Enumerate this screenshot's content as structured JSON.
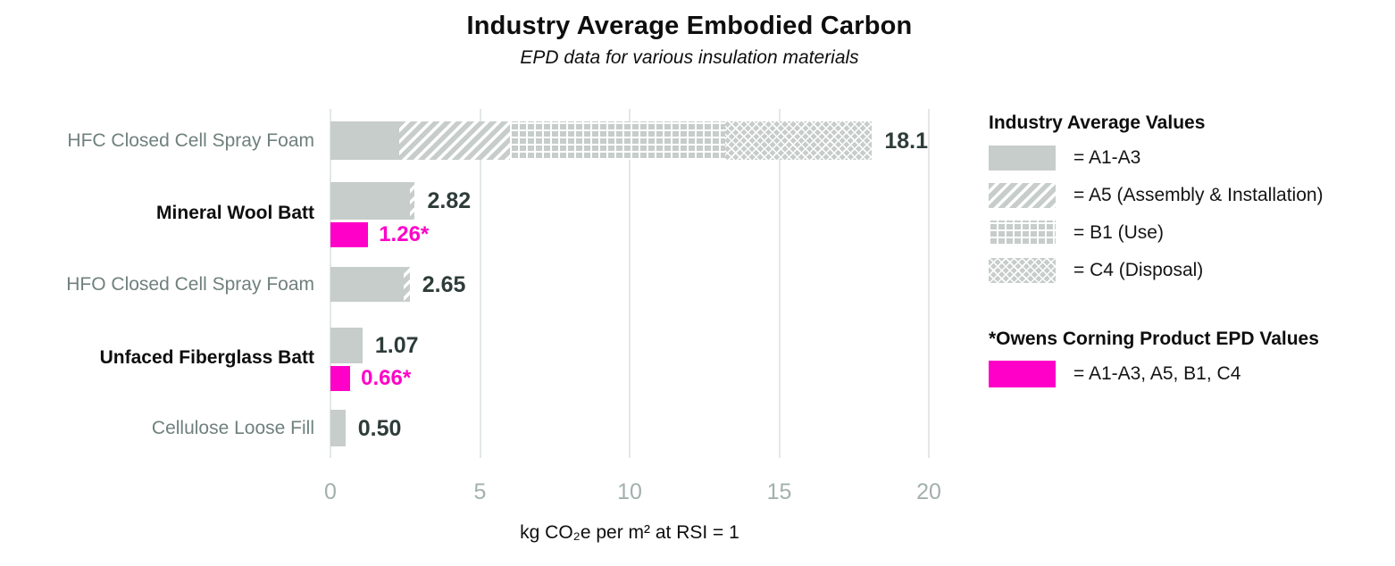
{
  "title": "Industry Average Embodied Carbon",
  "subtitle": "EPD data for various insulation materials",
  "colors": {
    "bar_gray": "#c6cdca",
    "magenta": "#ff00c8",
    "value_dark": "#2e3c3a",
    "cat_gray": "#6f807d",
    "tick_gray": "#a2b0ae",
    "gridline": "#e3e8e6",
    "ink": "#0e0e0e"
  },
  "chart_data": {
    "type": "bar",
    "orientation": "horizontal",
    "title": "Industry Average Embodied Carbon",
    "subtitle": "EPD data for various insulation materials",
    "xlabel": "kg CO₂e per m² at RSI = 1",
    "xlim": [
      0,
      20
    ],
    "xticks": [
      "0",
      "5",
      "10",
      "15",
      "20"
    ],
    "xtick_values": [
      0,
      5,
      10,
      15,
      20
    ],
    "grid": true,
    "stage_patterns": {
      "A1-A3": "solid",
      "A5": "diagonal",
      "B1": "grid",
      "C4": "weave"
    },
    "bars": [
      {
        "category": "HFC Closed Cell Spray Foam",
        "emphasis": false,
        "industry": {
          "total": 18.1,
          "total_label": "18.1",
          "segments": [
            {
              "stage": "A1-A3",
              "value": 2.3
            },
            {
              "stage": "A5",
              "value": 3.7
            },
            {
              "stage": "B1",
              "value": 7.2
            },
            {
              "stage": "C4",
              "value": 4.9
            }
          ]
        },
        "owens_corning": null
      },
      {
        "category": "Mineral Wool Batt",
        "emphasis": true,
        "industry": {
          "total": 2.82,
          "total_label": "2.82",
          "segments": [
            {
              "stage": "A1-A3",
              "value": 2.67
            },
            {
              "stage": "A5",
              "value": 0.15
            }
          ]
        },
        "owens_corning": {
          "value": 1.26,
          "label": "1.26*"
        }
      },
      {
        "category": "HFO Closed Cell Spray Foam",
        "emphasis": false,
        "industry": {
          "total": 2.65,
          "total_label": "2.65",
          "segments": [
            {
              "stage": "A1-A3",
              "value": 2.45
            },
            {
              "stage": "A5",
              "value": 0.2
            }
          ]
        },
        "owens_corning": null
      },
      {
        "category": "Unfaced Fiberglass Batt",
        "emphasis": true,
        "industry": {
          "total": 1.07,
          "total_label": "1.07",
          "segments": [
            {
              "stage": "A1-A3",
              "value": 1.07
            }
          ]
        },
        "owens_corning": {
          "value": 0.66,
          "label": "0.66*"
        }
      },
      {
        "category": "Cellulose Loose Fill",
        "emphasis": false,
        "industry": {
          "total": 0.5,
          "total_label": "0.50",
          "segments": [
            {
              "stage": "A1-A3",
              "value": 0.5
            }
          ]
        },
        "owens_corning": null
      }
    ]
  },
  "legend": {
    "industry_title": "Industry Average Values",
    "industry_items": [
      {
        "pattern": "solid",
        "label": "= A1-A3"
      },
      {
        "pattern": "diagonal",
        "label": "= A5 (Assembly & Installation)"
      },
      {
        "pattern": "grid",
        "label": "= B1 (Use)"
      },
      {
        "pattern": "weave",
        "label": "= C4 (Disposal)"
      }
    ],
    "oc_title": "*Owens Corning Product EPD Values",
    "oc_items": [
      {
        "pattern": "magenta",
        "label": "= A1-A3, A5, B1, C4"
      }
    ]
  }
}
